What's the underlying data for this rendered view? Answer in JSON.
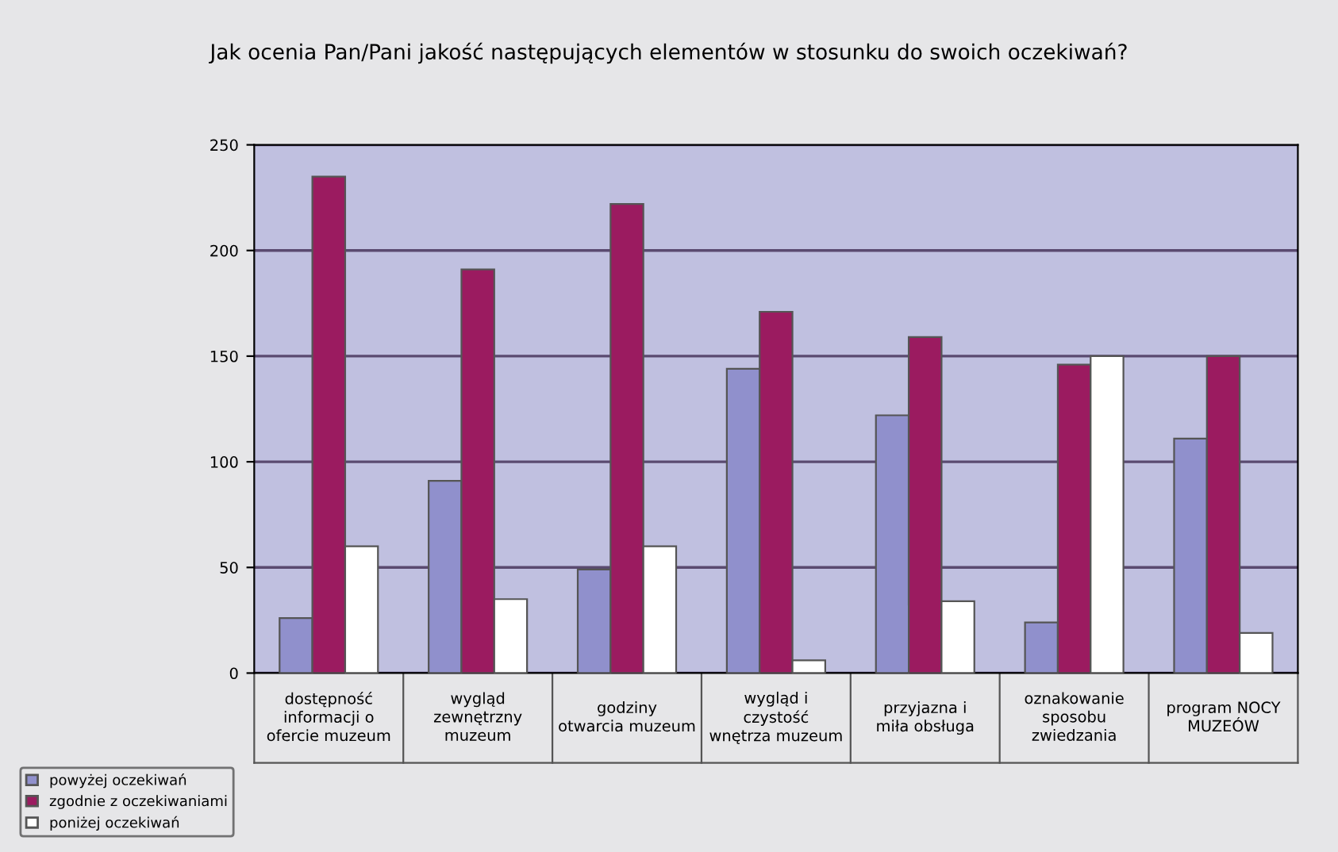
{
  "chart_data": {
    "type": "bar",
    "title": "Jak ocenia Pan/Pani jakość następujących elementów w stosunku do swoich oczekiwań?",
    "categories": [
      "dostępność informacji o ofercie muzeum",
      "wygląd zewnętrzny muzeum",
      "godziny otwarcia muzeum",
      "wygląd i czystość wnętrza muzeum",
      "przyjazna i miła obsługa",
      "oznakowanie sposobu zwiedzania",
      "program NOCY MUZEÓW"
    ],
    "series": [
      {
        "name": "powyżej oczekiwań",
        "color": "#9090cc",
        "values": [
          26,
          91,
          49,
          144,
          122,
          24,
          111
        ]
      },
      {
        "name": "zgodnie z oczekiwaniami",
        "color": "#9b1b60",
        "values": [
          235,
          191,
          222,
          171,
          159,
          146,
          150
        ]
      },
      {
        "name": "poniżej oczekiwań",
        "color": "#ffffff",
        "values": [
          60,
          35,
          60,
          6,
          34,
          150,
          19
        ]
      }
    ],
    "ylim": [
      0,
      250
    ],
    "yticks": [
      0,
      50,
      100,
      150,
      200,
      250
    ],
    "grid": "y",
    "legend": "bottom left"
  }
}
